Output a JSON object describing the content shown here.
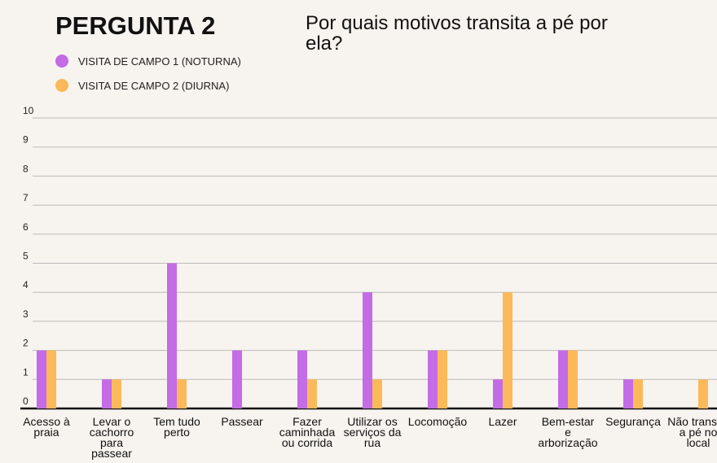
{
  "chart_data": {
    "type": "bar",
    "title": "PERGUNTA 2",
    "subtitle": "Por quais motivos transita a pé por ela?",
    "categories": [
      "Acesso à praia",
      "Levar o cachorro para passear",
      "Tem tudo perto",
      "Passear",
      "Fazer caminhada ou corrida",
      "Utilizar os serviços da rua",
      "Locomoção",
      "Lazer",
      "Bem-estar e arborização",
      "Segurança",
      "Não transita a pé no local"
    ],
    "series": [
      {
        "name": "VISITA DE CAMPO 1 (NOTURNA)",
        "color": "#c46be6",
        "values": [
          2,
          1,
          5,
          2,
          2,
          4,
          2,
          1,
          2,
          1,
          0
        ]
      },
      {
        "name": "VISITA DE CAMPO 2 (DIURNA)",
        "color": "#fbb95a",
        "values": [
          2,
          1,
          1,
          0,
          1,
          1,
          2,
          4,
          2,
          1,
          1
        ]
      }
    ],
    "ylim": [
      0,
      10
    ],
    "yticks": [
      0,
      1,
      2,
      3,
      4,
      5,
      6,
      7,
      8,
      9,
      10
    ],
    "grid": true
  }
}
